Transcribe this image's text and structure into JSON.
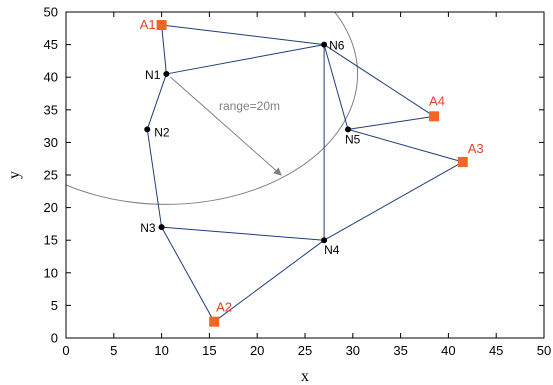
{
  "chart_data": {
    "type": "scatter",
    "xlabel": "x",
    "ylabel": "y",
    "xlim": [
      0,
      50
    ],
    "ylim": [
      0,
      50
    ],
    "xticks": [
      "0",
      "5",
      "10",
      "15",
      "20",
      "25",
      "30",
      "35",
      "40",
      "45",
      "50"
    ],
    "yticks": [
      "0",
      "5",
      "10",
      "15",
      "20",
      "25",
      "30",
      "35",
      "40",
      "45",
      "50"
    ],
    "grid": false,
    "unknown_nodes": [
      {
        "label": "N1",
        "x": 10.5,
        "y": 40.5
      },
      {
        "label": "N2",
        "x": 8.5,
        "y": 32
      },
      {
        "label": "N3",
        "x": 10,
        "y": 17
      },
      {
        "label": "N4",
        "x": 27,
        "y": 15
      },
      {
        "label": "N5",
        "x": 29.5,
        "y": 32
      },
      {
        "label": "N6",
        "x": 27,
        "y": 45
      }
    ],
    "anchor_nodes": [
      {
        "label": "A1",
        "x": 10,
        "y": 48
      },
      {
        "label": "A2",
        "x": 15.5,
        "y": 2.5
      },
      {
        "label": "A3",
        "x": 41.5,
        "y": 27
      },
      {
        "label": "A4",
        "x": 38.5,
        "y": 34
      }
    ],
    "links": [
      [
        "A1",
        "N1"
      ],
      [
        "A1",
        "N6"
      ],
      [
        "N1",
        "N6"
      ],
      [
        "N1",
        "N2"
      ],
      [
        "N2",
        "N3"
      ],
      [
        "N3",
        "A2"
      ],
      [
        "N3",
        "N4"
      ],
      [
        "N4",
        "A2"
      ],
      [
        "N4",
        "N6"
      ],
      [
        "N4",
        "A3"
      ],
      [
        "N6",
        "N5"
      ],
      [
        "N6",
        "A4"
      ],
      [
        "N5",
        "A4"
      ],
      [
        "N5",
        "A3"
      ]
    ],
    "range_annotation": {
      "text": "range=20m",
      "center": "N1",
      "radius": 20,
      "arrow_to": {
        "x": 22.5,
        "y": 25
      }
    },
    "colors": {
      "link": "#1f3d7a",
      "node": "#000000",
      "anchor": "#f26522",
      "anchor_label": "#e8402a",
      "range": "#808080"
    }
  }
}
